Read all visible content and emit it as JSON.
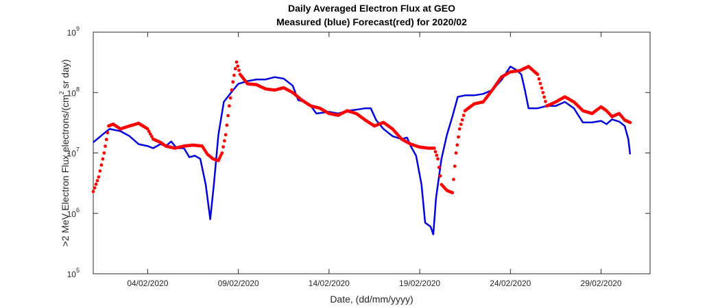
{
  "chart_data": {
    "type": "line",
    "title": "Daily Averaged Electron Flux at GEO",
    "subtitle": "Measured (blue) Forecast(red) for 2020/02",
    "xlabel": "Date, (dd/mm/yyyy)",
    "ylabel_parts": [
      ">2 MeV Electron Flux,electrons/(cm",
      "2",
      " sr day)"
    ],
    "y_scale": "log",
    "ylim": [
      100000,
      1000000000
    ],
    "y_ticks": [
      {
        "base": "10",
        "exp": "5",
        "value": 100000
      },
      {
        "base": "10",
        "exp": "6",
        "value": 1000000
      },
      {
        "base": "10",
        "exp": "7",
        "value": 10000000
      },
      {
        "base": "10",
        "exp": "8",
        "value": 100000000
      },
      {
        "base": "10",
        "exp": "9",
        "value": 1000000000
      }
    ],
    "xlim_day": [
      1.0,
      31.7
    ],
    "x_ticks": [
      {
        "label": "04/02/2020",
        "day": 4
      },
      {
        "label": "09/02/2020",
        "day": 9
      },
      {
        "label": "14/02/2020",
        "day": 14
      },
      {
        "label": "19/02/2020",
        "day": 19
      },
      {
        "label": "24/02/2020",
        "day": 24
      },
      {
        "label": "29/02/2020",
        "day": 29
      }
    ],
    "grid": false,
    "series": [
      {
        "name": "Measured",
        "color": "#0000e0",
        "style": "line",
        "points": [
          [
            1.0,
            15000000
          ],
          [
            1.5,
            20000000
          ],
          [
            1.9,
            25000000
          ],
          [
            2.5,
            23000000
          ],
          [
            3.0,
            19000000
          ],
          [
            3.5,
            14000000
          ],
          [
            4.0,
            13000000
          ],
          [
            4.3,
            12000000
          ],
          [
            4.7,
            14000000
          ],
          [
            5.0,
            13000000
          ],
          [
            5.3,
            15500000
          ],
          [
            5.6,
            12000000
          ],
          [
            6.0,
            12000000
          ],
          [
            6.3,
            8500000
          ],
          [
            6.6,
            9000000
          ],
          [
            6.9,
            8000000
          ],
          [
            7.2,
            3000000
          ],
          [
            7.45,
            800000
          ],
          [
            7.65,
            3000000
          ],
          [
            7.9,
            20000000
          ],
          [
            8.2,
            70000000
          ],
          [
            8.6,
            100000000
          ],
          [
            9.0,
            140000000
          ],
          [
            9.5,
            155000000
          ],
          [
            10.0,
            165000000
          ],
          [
            10.5,
            165000000
          ],
          [
            11.0,
            180000000
          ],
          [
            11.5,
            170000000
          ],
          [
            12.0,
            130000000
          ],
          [
            12.3,
            75000000
          ],
          [
            12.7,
            70000000
          ],
          [
            13.0,
            60000000
          ],
          [
            13.3,
            45000000
          ],
          [
            14.0,
            48000000
          ],
          [
            14.5,
            45000000
          ],
          [
            15.0,
            50000000
          ],
          [
            15.5,
            52000000
          ],
          [
            16.0,
            55000000
          ],
          [
            16.3,
            55000000
          ],
          [
            16.6,
            35000000
          ],
          [
            17.0,
            25000000
          ],
          [
            17.5,
            19000000
          ],
          [
            18.0,
            17000000
          ],
          [
            18.3,
            18000000
          ],
          [
            18.5,
            13000000
          ],
          [
            18.8,
            9000000
          ],
          [
            19.1,
            3000000
          ],
          [
            19.3,
            700000
          ],
          [
            19.6,
            600000
          ],
          [
            19.75,
            450000
          ],
          [
            19.9,
            1800000
          ],
          [
            20.2,
            8000000
          ],
          [
            20.5,
            20000000
          ],
          [
            20.8,
            40000000
          ],
          [
            21.1,
            85000000
          ],
          [
            21.5,
            90000000
          ],
          [
            22.0,
            90000000
          ],
          [
            22.5,
            95000000
          ],
          [
            23.0,
            110000000
          ],
          [
            23.5,
            160000000
          ],
          [
            24.0,
            270000000
          ],
          [
            24.3,
            240000000
          ],
          [
            24.6,
            200000000
          ],
          [
            24.8,
            110000000
          ],
          [
            25.0,
            55000000
          ],
          [
            25.5,
            55000000
          ],
          [
            26.0,
            60000000
          ],
          [
            26.5,
            60000000
          ],
          [
            27.0,
            70000000
          ],
          [
            27.5,
            55000000
          ],
          [
            28.0,
            32000000
          ],
          [
            28.5,
            32000000
          ],
          [
            29.0,
            34000000
          ],
          [
            29.3,
            30000000
          ],
          [
            29.6,
            36000000
          ],
          [
            30.0,
            33000000
          ],
          [
            30.3,
            28000000
          ],
          [
            30.5,
            17000000
          ],
          [
            30.6,
            9500000
          ]
        ]
      },
      {
        "name": "Forecast",
        "color": "#ff0000",
        "style": "dots",
        "points": [
          [
            1.0,
            2300000
          ],
          [
            1.3,
            4000000
          ],
          [
            1.6,
            10000000
          ],
          [
            1.85,
            28000000
          ],
          [
            2.1,
            30000000
          ],
          [
            2.5,
            25000000
          ],
          [
            3.0,
            28000000
          ],
          [
            3.5,
            31000000
          ],
          [
            4.0,
            25000000
          ],
          [
            4.3,
            17000000
          ],
          [
            4.7,
            15000000
          ],
          [
            5.0,
            13000000
          ],
          [
            5.5,
            12000000
          ],
          [
            6.0,
            13000000
          ],
          [
            6.5,
            13500000
          ],
          [
            7.0,
            13000000
          ],
          [
            7.3,
            9500000
          ],
          [
            7.6,
            8000000
          ],
          [
            7.9,
            7500000
          ],
          [
            8.1,
            10000000
          ],
          [
            8.3,
            20000000
          ],
          [
            8.5,
            60000000
          ],
          [
            8.7,
            150000000
          ],
          [
            8.9,
            320000000
          ],
          [
            9.1,
            200000000
          ],
          [
            9.5,
            140000000
          ],
          [
            10.0,
            135000000
          ],
          [
            10.5,
            115000000
          ],
          [
            11.0,
            110000000
          ],
          [
            11.5,
            120000000
          ],
          [
            12.0,
            100000000
          ],
          [
            12.5,
            75000000
          ],
          [
            13.0,
            60000000
          ],
          [
            13.5,
            55000000
          ],
          [
            14.0,
            45000000
          ],
          [
            14.5,
            42000000
          ],
          [
            15.0,
            50000000
          ],
          [
            15.5,
            45000000
          ],
          [
            16.0,
            35000000
          ],
          [
            16.5,
            28000000
          ],
          [
            17.0,
            32000000
          ],
          [
            17.5,
            25000000
          ],
          [
            18.0,
            17000000
          ],
          [
            18.5,
            14000000
          ],
          [
            19.0,
            12500000
          ],
          [
            19.5,
            12000000
          ],
          [
            19.8,
            12000000
          ],
          [
            20.0,
            8000000
          ],
          [
            20.2,
            3000000
          ],
          [
            20.5,
            2400000
          ],
          [
            20.8,
            2200000
          ],
          [
            21.0,
            10000000
          ],
          [
            21.2,
            25000000
          ],
          [
            21.5,
            50000000
          ],
          [
            22.0,
            65000000
          ],
          [
            22.5,
            70000000
          ],
          [
            23.0,
            110000000
          ],
          [
            23.5,
            180000000
          ],
          [
            24.0,
            220000000
          ],
          [
            24.5,
            230000000
          ],
          [
            25.0,
            270000000
          ],
          [
            25.5,
            200000000
          ],
          [
            25.8,
            100000000
          ],
          [
            26.0,
            60000000
          ],
          [
            26.5,
            70000000
          ],
          [
            27.0,
            85000000
          ],
          [
            27.5,
            70000000
          ],
          [
            28.0,
            50000000
          ],
          [
            28.5,
            45000000
          ],
          [
            29.0,
            58000000
          ],
          [
            29.3,
            50000000
          ],
          [
            29.6,
            40000000
          ],
          [
            30.0,
            45000000
          ],
          [
            30.3,
            35000000
          ],
          [
            30.6,
            32000000
          ]
        ]
      }
    ]
  }
}
